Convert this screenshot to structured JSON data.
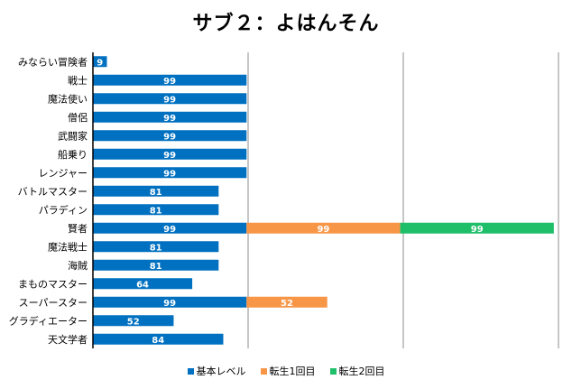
{
  "chart_data": {
    "type": "bar",
    "orientation": "horizontal",
    "stacked": true,
    "title": "サブ２：よはんそん",
    "xlim": [
      0,
      300
    ],
    "grid": true,
    "legend_position": "bottom",
    "categories": [
      "みならい冒険者",
      "戦士",
      "魔法使い",
      "僧侶",
      "武闘家",
      "船乗り",
      "レンジャー",
      "バトルマスター",
      "パラディン",
      "賢者",
      "魔法戦士",
      "海賊",
      "まものマスター",
      "スーパースター",
      "グラディエーター",
      "天文学者"
    ],
    "series": [
      {
        "name": "基本レベル",
        "color": "#0070C0",
        "values": [
          9,
          99,
          99,
          99,
          99,
          99,
          99,
          81,
          81,
          99,
          81,
          81,
          64,
          99,
          52,
          84
        ]
      },
      {
        "name": "転生1回目",
        "color": "#F79646",
        "values": [
          0,
          0,
          0,
          0,
          0,
          0,
          0,
          0,
          0,
          99,
          0,
          0,
          0,
          52,
          0,
          0
        ]
      },
      {
        "name": "転生2回目",
        "color": "#1FBF6A",
        "values": [
          0,
          0,
          0,
          0,
          0,
          0,
          0,
          0,
          0,
          99,
          0,
          0,
          0,
          0,
          0,
          0
        ]
      }
    ]
  }
}
